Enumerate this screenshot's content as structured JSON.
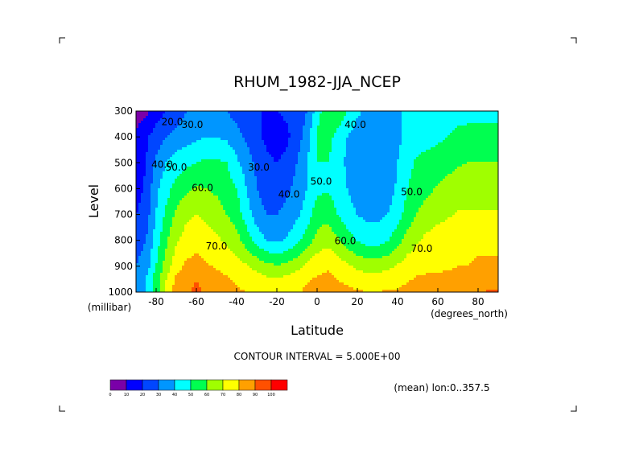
{
  "chart_data": {
    "type": "contour",
    "title": "RHUM_1982-JJA_NCEP",
    "xlabel": "Latitude",
    "ylabel": "Level",
    "x_unit": "(degrees_north)",
    "y_unit": "(millibar)",
    "xlim": [
      -90,
      90
    ],
    "ylim": [
      1000,
      300
    ],
    "x_ticks": [
      {
        "value": -80,
        "label": "-80"
      },
      {
        "value": -60,
        "label": "-60"
      },
      {
        "value": -40,
        "label": "-40"
      },
      {
        "value": -20,
        "label": "-20"
      },
      {
        "value": 0,
        "label": "0"
      },
      {
        "value": 20,
        "label": "20"
      },
      {
        "value": 40,
        "label": "40"
      },
      {
        "value": 60,
        "label": "60"
      },
      {
        "value": 80,
        "label": "80"
      }
    ],
    "y_ticks": [
      {
        "value": 300,
        "label": "300"
      },
      {
        "value": 400,
        "label": "400"
      },
      {
        "value": 500,
        "label": "500"
      },
      {
        "value": 600,
        "label": "600"
      },
      {
        "value": 700,
        "label": "700"
      },
      {
        "value": 800,
        "label": "800"
      },
      {
        "value": 900,
        "label": "900"
      },
      {
        "value": 1000,
        "label": "1000"
      }
    ],
    "contour_interval_text": "CONTOUR INTERVAL = 5.000E+00",
    "averaging_text": "(mean) lon:0..357.5",
    "colorbar": {
      "levels": [
        0,
        10,
        20,
        30,
        40,
        50,
        60,
        70,
        80,
        90,
        100
      ],
      "labels": [
        "0",
        "10",
        "20",
        "30",
        "40",
        "50",
        "60",
        "70",
        "80",
        "90",
        "100"
      ],
      "colors": [
        "#7a00a8",
        "#0000ff",
        "#0046ff",
        "#0096ff",
        "#00ffff",
        "#00ff50",
        "#a0ff00",
        "#ffff00",
        "#ffa000",
        "#ff5000",
        "#ff0000"
      ]
    },
    "contour_labels": [
      {
        "text": "20.0",
        "lat": -72,
        "lev": 355
      },
      {
        "text": "30.0",
        "lat": -62,
        "lev": 365
      },
      {
        "text": "40.0",
        "lat": -77,
        "lev": 520
      },
      {
        "text": "50.0",
        "lat": -70,
        "lev": 530
      },
      {
        "text": "60.0",
        "lat": -57,
        "lev": 610
      },
      {
        "text": "70.0",
        "lat": -50,
        "lev": 835
      },
      {
        "text": "30.0",
        "lat": -29,
        "lev": 530
      },
      {
        "text": "40.0",
        "lat": -14,
        "lev": 635
      },
      {
        "text": "50.0",
        "lat": 2,
        "lev": 585
      },
      {
        "text": "60.0",
        "lat": 14,
        "lev": 815
      },
      {
        "text": "40.0",
        "lat": 19,
        "lev": 365
      },
      {
        "text": "50.0",
        "lat": 47,
        "lev": 625
      },
      {
        "text": "70.0",
        "lat": 52,
        "lev": 845
      }
    ],
    "shading": {
      "lat": [
        -90,
        -85,
        -80,
        -75,
        -70,
        -65,
        -60,
        -55,
        -50,
        -45,
        -40,
        -35,
        -30,
        -25,
        -20,
        -15,
        -10,
        -5,
        0,
        5,
        10,
        15,
        20,
        25,
        30,
        35,
        40,
        45,
        50,
        55,
        60,
        65,
        70,
        75,
        80,
        85,
        90
      ],
      "lev": [
        300,
        400,
        500,
        600,
        700,
        800,
        900,
        950,
        1000
      ],
      "rhum": [
        [
          5,
          8,
          15,
          20,
          25,
          30,
          32,
          35,
          35,
          30,
          26,
          22,
          20,
          20,
          20,
          22,
          24,
          30,
          45,
          58,
          60,
          50,
          42,
          38,
          36,
          36,
          38,
          42,
          45,
          45,
          45,
          46,
          47,
          48,
          48,
          48,
          48
        ],
        [
          12,
          18,
          25,
          30,
          33,
          36,
          38,
          40,
          40,
          38,
          34,
          28,
          22,
          18,
          15,
          18,
          25,
          35,
          52,
          55,
          46,
          40,
          35,
          31,
          31,
          33,
          38,
          42,
          45,
          47,
          48,
          50,
          52,
          52,
          52,
          52,
          52
        ],
        [
          15,
          20,
          32,
          40,
          45,
          48,
          50,
          52,
          52,
          50,
          42,
          35,
          28,
          22,
          20,
          23,
          30,
          40,
          50,
          50,
          45,
          38,
          33,
          30,
          30,
          33,
          40,
          47,
          52,
          53,
          55,
          57,
          59,
          60,
          60,
          60,
          60
        ],
        [
          15,
          22,
          38,
          46,
          54,
          58,
          61,
          60,
          58,
          55,
          50,
          40,
          30,
          25,
          25,
          28,
          33,
          40,
          48,
          49,
          46,
          40,
          35,
          31,
          31,
          34,
          42,
          50,
          55,
          58,
          61,
          63,
          65,
          65,
          65,
          65,
          65
        ],
        [
          20,
          25,
          40,
          52,
          62,
          68,
          70,
          68,
          65,
          60,
          55,
          45,
          35,
          30,
          30,
          33,
          38,
          45,
          55,
          57,
          50,
          44,
          40,
          37,
          37,
          40,
          46,
          54,
          61,
          64,
          67,
          69,
          71,
          71,
          71,
          71,
          71
        ],
        [
          25,
          30,
          45,
          58,
          69,
          74,
          76,
          74,
          72,
          68,
          64,
          55,
          46,
          40,
          38,
          41,
          47,
          55,
          63,
          67,
          62,
          55,
          49,
          46,
          46,
          49,
          56,
          64,
          69,
          73,
          75,
          75,
          75,
          75,
          77,
          77,
          77
        ],
        [
          30,
          35,
          50,
          65,
          76,
          82,
          84,
          81,
          79,
          77,
          74,
          71,
          67,
          63,
          61,
          63,
          67,
          73,
          77,
          79,
          76,
          72,
          68,
          66,
          66,
          68,
          71,
          75,
          77,
          79,
          79,
          79,
          80,
          80,
          82,
          82,
          82
        ],
        [
          30,
          40,
          55,
          70,
          82,
          86,
          90,
          86,
          83,
          81,
          79,
          76,
          74,
          72,
          71,
          73,
          75,
          79,
          81,
          82,
          80,
          78,
          76,
          74,
          74,
          75,
          77,
          79,
          81,
          81,
          81,
          82,
          83,
          83,
          85,
          86,
          86
        ],
        [
          30,
          40,
          55,
          72,
          85,
          89,
          92,
          88,
          85,
          83,
          81,
          80,
          79,
          77,
          76,
          77,
          79,
          82,
          84,
          85,
          83,
          82,
          81,
          80,
          80,
          81,
          81,
          83,
          84,
          84,
          84,
          86,
          87,
          87,
          89,
          91,
          91
        ]
      ]
    }
  }
}
